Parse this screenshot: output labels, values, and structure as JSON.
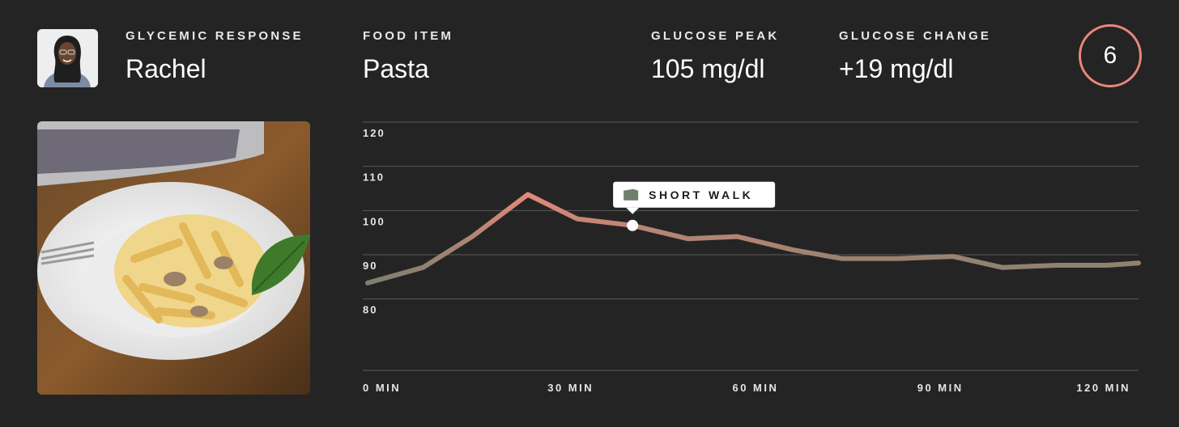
{
  "header": {
    "response_label": "GLYCEMIC RESPONSE",
    "person_name": "Rachel",
    "food_label": "FOOD ITEM",
    "food_value": "Pasta",
    "peak_label": "GLUCOSE PEAK",
    "peak_value": "105 mg/dl",
    "change_label": "GLUCOSE CHANGE",
    "change_value": "+19 mg/dl",
    "score": "6"
  },
  "colors": {
    "background": "#242424",
    "line_high": "#e8887a",
    "line_low": "#6e7f6c",
    "score_ring": "#e8887a",
    "grid": "#5a5a5a"
  },
  "chart_data": {
    "type": "line",
    "title": "",
    "xlabel": "",
    "ylabel": "",
    "ylim": [
      75,
      120
    ],
    "yticks": [
      120,
      110,
      100,
      90,
      80
    ],
    "xlim": [
      0,
      125
    ],
    "xticks": [
      0,
      30,
      60,
      90,
      120
    ],
    "xtick_labels": [
      "0 MIN",
      "30 MIN",
      "60 MIN",
      "90 MIN",
      "120 MIN"
    ],
    "grid": true,
    "series": [
      {
        "x": [
          0,
          9,
          17,
          26,
          34,
          43,
          52,
          60,
          69,
          77,
          86,
          95,
          103,
          112,
          120,
          129
        ],
        "y": [
          86,
          89.5,
          96.5,
          106,
          100.5,
          99,
          96,
          96.5,
          93.5,
          91.5,
          91.5,
          92,
          89.5,
          90,
          90,
          90.5
        ]
      }
    ],
    "annotation": {
      "label": "SHORT WALK",
      "x": 43,
      "y": 99,
      "icon": "walk-flag-icon"
    }
  }
}
